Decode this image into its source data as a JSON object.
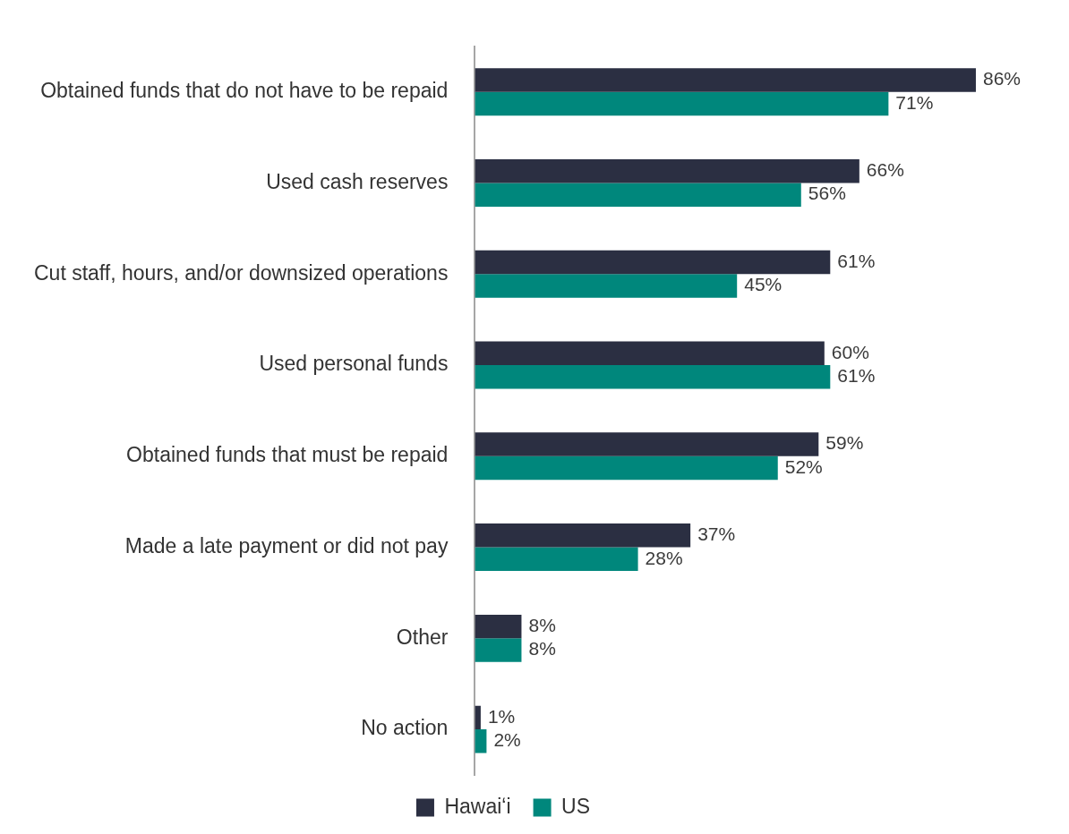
{
  "chart_data": {
    "type": "bar",
    "orientation": "horizontal",
    "categories": [
      "Obtained funds that do not have to be repaid",
      "Used cash reserves",
      "Cut staff, hours, and/or downsized operations",
      "Used personal funds",
      "Obtained funds that must be repaid",
      "Made a late payment or did not pay",
      "Other",
      "No action"
    ],
    "series": [
      {
        "name": "Hawaiʻi",
        "color": "#2b2f42",
        "values": [
          86,
          66,
          61,
          60,
          59,
          37,
          8,
          1
        ],
        "value_labels": [
          "86%",
          "66%",
          "61%",
          "60%",
          "59%",
          "37%",
          "8%",
          "1%"
        ]
      },
      {
        "name": "US",
        "color": "#00877c",
        "values": [
          71,
          56,
          45,
          61,
          52,
          28,
          8,
          2
        ],
        "value_labels": [
          "71%",
          "56%",
          "45%",
          "61%",
          "52%",
          "28%",
          "8%",
          "2%"
        ]
      }
    ],
    "tick_labels": "y",
    "grid": false,
    "legend": "bottom"
  }
}
